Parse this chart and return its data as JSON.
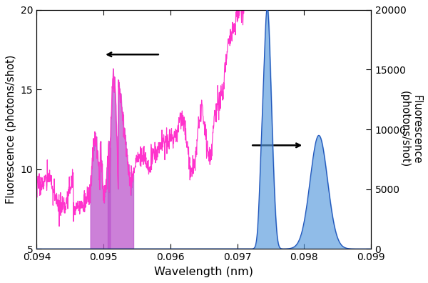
{
  "xlabel": "Wavelength (nm)",
  "ylabel_left": "Fluorescence (photons/shot)",
  "ylabel_right": "Fluorescence\n(photons/shot)",
  "xlim": [
    0.094,
    0.099
  ],
  "ylim_left": [
    5,
    20
  ],
  "ylim_right": [
    0,
    20000
  ],
  "yticks_left": [
    5,
    10,
    15,
    20
  ],
  "yticks_right": [
    0,
    5000,
    10000,
    15000,
    20000
  ],
  "xticks": [
    0.094,
    0.095,
    0.096,
    0.097,
    0.098,
    0.099
  ],
  "magenta_color": "#ff33cc",
  "magenta_fill_color": "#bb55cc",
  "blue_color": "#2255bb",
  "blue_fill_color": "#5599dd",
  "blue_fill_alpha": 0.65
}
